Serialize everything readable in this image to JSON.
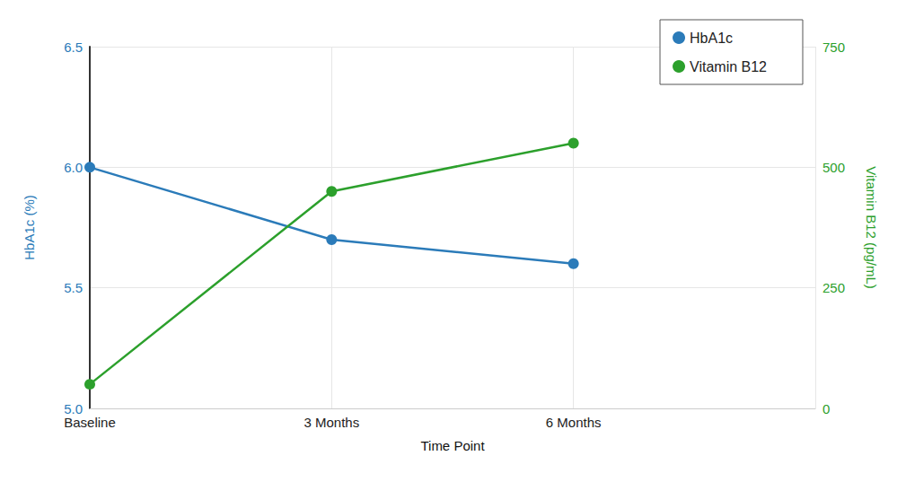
{
  "chart_data": {
    "type": "line",
    "x_label": "Time Point",
    "y_label": "HbA1c (%)",
    "y2_label": "Vitamin B12 (pg/mL)",
    "categories": [
      "Baseline",
      "3 Months",
      "6 Months",
      null
    ],
    "series": [
      {
        "name": "HbA1c",
        "color": "#2b7bb9",
        "values": [
          6.0,
          5.7,
          5.6,
          null
        ],
        "axis": "y",
        "marker": "circle",
        "line_style": "solid"
      },
      {
        "name": "Vitamin B12",
        "color": "#2ca02c",
        "values": [
          50,
          450,
          550,
          null
        ],
        "axis": "y2",
        "marker": "circle",
        "line_style": "solid"
      }
    ],
    "ylim": [
      5.0,
      6.5
    ],
    "yticks": [
      {
        "value": 5.0,
        "label": "5.0"
      },
      {
        "value": 5.5,
        "label": "5.5"
      },
      {
        "value": 6.0,
        "label": "6.0"
      },
      {
        "value": 6.5,
        "label": "6.5"
      }
    ],
    "y2lim": [
      0,
      750
    ],
    "y2ticks": [
      0,
      250,
      500,
      750
    ],
    "grid": true,
    "legend": "upper right"
  }
}
